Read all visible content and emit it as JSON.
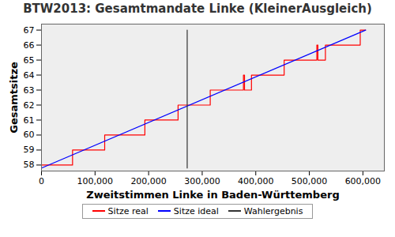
{
  "chart_data": {
    "type": "line",
    "title": "BTW2013: Gesamtmandate Linke (KleinerAusgleich)",
    "x_label": "Zweitstimmen Linke in Baden-Württemberg",
    "y_label": "Gesamtsitze",
    "series": [
      {
        "name": "Sitze real",
        "color": "#ff0000",
        "x": [
          0,
          58000,
          58000,
          118000,
          118000,
          193000,
          193000,
          255000,
          255000,
          315000,
          315000,
          377000,
          377000,
          379000,
          379000,
          392000,
          392000,
          453000,
          453000,
          514000,
          514000,
          516000,
          516000,
          530000,
          530000,
          595000,
          595000,
          605000
        ],
        "values": [
          58,
          58,
          59,
          59,
          60,
          60,
          61,
          61,
          62,
          62,
          63,
          63,
          64,
          64,
          63,
          63,
          64,
          64,
          65,
          65,
          66,
          66,
          65,
          65,
          66,
          66,
          67,
          67
        ]
      },
      {
        "name": "Sitze ideal",
        "color": "#0000ff",
        "x": [
          0,
          605000
        ],
        "values": [
          57.8,
          67
        ]
      },
      {
        "name": "Wahlergebnis",
        "color": "#333333",
        "x": [
          272000,
          272000
        ],
        "values": [
          57.8,
          67
        ]
      }
    ],
    "xlim": [
      0,
      640000
    ],
    "xticks": [
      0,
      {
        "value": 100000,
        "label": "100,000"
      },
      {
        "value": 200000,
        "label": "200,000"
      },
      {
        "value": 300000,
        "label": "300,000"
      },
      {
        "value": 400000,
        "label": "400,000"
      },
      {
        "value": 500000,
        "label": "500,000"
      },
      {
        "value": 600000,
        "label": "600,000"
      }
    ],
    "ylim": [
      57.6,
      67.4
    ],
    "yticks": [
      58,
      59,
      60,
      61,
      62,
      63,
      64,
      65,
      66,
      67
    ],
    "legend": "bottom",
    "grid": false
  }
}
